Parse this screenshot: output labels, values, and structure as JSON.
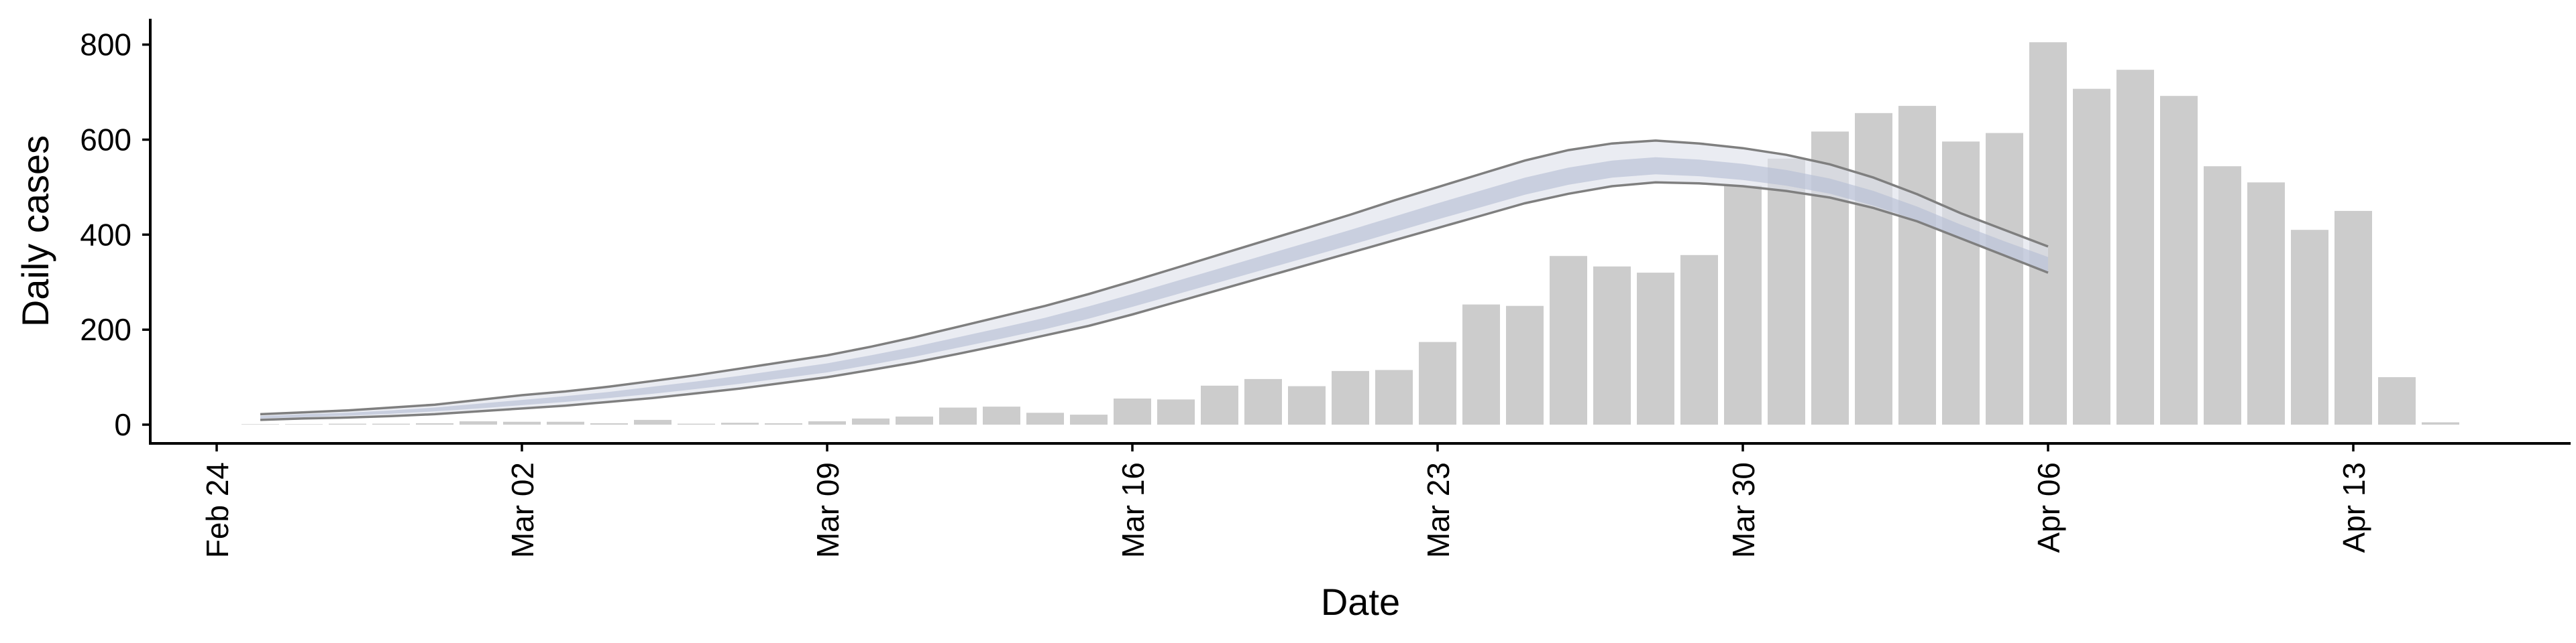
{
  "chart_data": {
    "type": "bar",
    "xlabel": "Date",
    "ylabel": "Daily cases",
    "ylim": [
      -38,
      850
    ],
    "yticks": [
      0,
      200,
      400,
      600,
      800
    ],
    "x_tick_labels": [
      "Feb 24",
      "Mar 02",
      "Mar 09",
      "Mar 16",
      "Mar 23",
      "Mar 30",
      "Apr 06",
      "Apr 13"
    ],
    "grid": false,
    "legend": "none",
    "colors": {
      "bars": "#cccccc",
      "band_outer": "#dde1ea",
      "band_inner": "#b4bdd3",
      "bound_line": "#7f7f7f"
    },
    "bars": {
      "dates": [
        "2020-02-25",
        "2020-02-26",
        "2020-02-27",
        "2020-02-28",
        "2020-02-29",
        "2020-03-01",
        "2020-03-02",
        "2020-03-03",
        "2020-03-04",
        "2020-03-05",
        "2020-03-06",
        "2020-03-07",
        "2020-03-08",
        "2020-03-09",
        "2020-03-10",
        "2020-03-11",
        "2020-03-12",
        "2020-03-13",
        "2020-03-14",
        "2020-03-15",
        "2020-03-16",
        "2020-03-17",
        "2020-03-18",
        "2020-03-19",
        "2020-03-20",
        "2020-03-21",
        "2020-03-22",
        "2020-03-23",
        "2020-03-24",
        "2020-03-25",
        "2020-03-26",
        "2020-03-27",
        "2020-03-28",
        "2020-03-29",
        "2020-03-30",
        "2020-03-31",
        "2020-04-01",
        "2020-04-02",
        "2020-04-03",
        "2020-04-04",
        "2020-04-05",
        "2020-04-06",
        "2020-04-07",
        "2020-04-08",
        "2020-04-09",
        "2020-04-10",
        "2020-04-11",
        "2020-04-12",
        "2020-04-13",
        "2020-04-14",
        "2020-04-15"
      ],
      "values": [
        1,
        1,
        2,
        2,
        3,
        7,
        6,
        6,
        3,
        10,
        2,
        4,
        3,
        7,
        13,
        17,
        36,
        38,
        25,
        21,
        55,
        53,
        82,
        96,
        81,
        113,
        115,
        174,
        253,
        250,
        355,
        333,
        320,
        357,
        503,
        560,
        617,
        656,
        671,
        596,
        614,
        805,
        707,
        747,
        692,
        544,
        510,
        410,
        450,
        100,
        5
      ]
    },
    "series": [
      {
        "role": "median band",
        "x": [
          "2020-02-25",
          "2020-02-26",
          "2020-02-27",
          "2020-02-28",
          "2020-02-29",
          "2020-03-01",
          "2020-03-02",
          "2020-03-03",
          "2020-03-04",
          "2020-03-05",
          "2020-03-06",
          "2020-03-07",
          "2020-03-08",
          "2020-03-09",
          "2020-03-10",
          "2020-03-11",
          "2020-03-12",
          "2020-03-13",
          "2020-03-14",
          "2020-03-15",
          "2020-03-16",
          "2020-03-17",
          "2020-03-18",
          "2020-03-19",
          "2020-03-20",
          "2020-03-21",
          "2020-03-22",
          "2020-03-23",
          "2020-03-24",
          "2020-03-25",
          "2020-03-26",
          "2020-03-27",
          "2020-03-28",
          "2020-03-29",
          "2020-03-30",
          "2020-03-31",
          "2020-04-01",
          "2020-04-02",
          "2020-04-03",
          "2020-04-04",
          "2020-04-05",
          "2020-04-06"
        ],
        "outer_upper": [
          22,
          26,
          30,
          36,
          42,
          52,
          62,
          70,
          80,
          92,
          104,
          118,
          132,
          146,
          164,
          184,
          206,
          228,
          250,
          275,
          302,
          330,
          358,
          386,
          414,
          442,
          472,
          500,
          528,
          556,
          578,
          592,
          598,
          592,
          582,
          568,
          548,
          520,
          485,
          445,
          410,
          375
        ],
        "inner_upper": [
          18,
          22,
          25,
          30,
          36,
          44,
          52,
          60,
          69,
          80,
          91,
          103,
          116,
          129,
          146,
          164,
          184,
          204,
          225,
          249,
          275,
          302,
          329,
          356,
          383,
          410,
          438,
          466,
          493,
          520,
          541,
          556,
          563,
          558,
          549,
          536,
          518,
          492,
          459,
          421,
          386,
          353
        ],
        "inner_lower": [
          13,
          16,
          19,
          23,
          28,
          34,
          41,
          48,
          56,
          65,
          75,
          86,
          98,
          110,
          126,
          143,
          162,
          181,
          201,
          223,
          248,
          274,
          300,
          326,
          352,
          378,
          405,
          432,
          458,
          484,
          505,
          520,
          527,
          523,
          515,
          503,
          486,
          461,
          430,
          392,
          356,
          320
        ],
        "outer_lower": [
          10,
          13,
          15,
          18,
          22,
          28,
          34,
          40,
          48,
          56,
          66,
          76,
          88,
          100,
          115,
          131,
          149,
          168,
          188,
          208,
          232,
          258,
          284,
          310,
          336,
          362,
          388,
          414,
          440,
          466,
          486,
          502,
          510,
          508,
          502,
          492,
          478,
          456,
          428,
          392,
          356,
          320
        ]
      }
    ]
  }
}
